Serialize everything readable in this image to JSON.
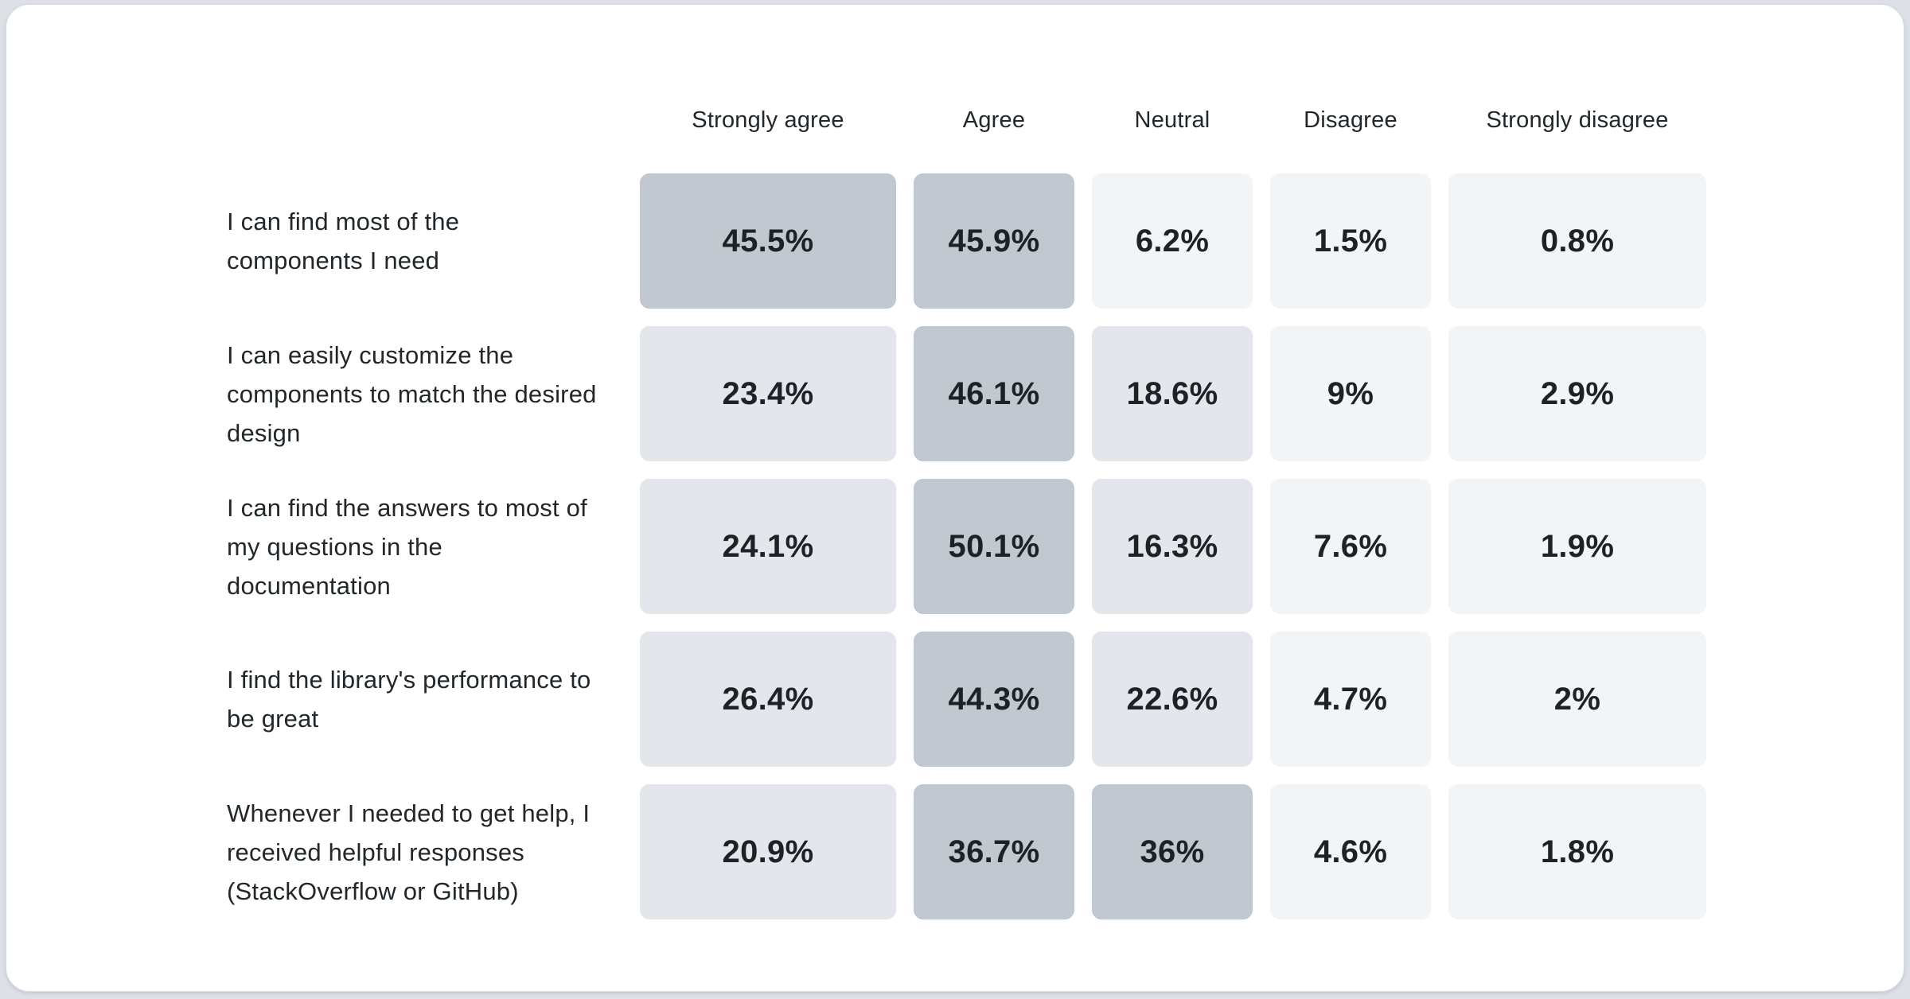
{
  "page": {
    "background_color": "#dde1e6",
    "card_background_color": "#ffffff",
    "text_color": "#21272a"
  },
  "chart_data": {
    "type": "heatmap",
    "title": "",
    "legend_position": "none",
    "grid": false,
    "columns": [
      "Strongly agree",
      "Agree",
      "Neutral",
      "Disagree",
      "Strongly disagree"
    ],
    "rows": [
      {
        "label": "I can find most of the components I need",
        "values": [
          45.5,
          45.9,
          6.2,
          1.5,
          0.8
        ],
        "display": [
          "45.5%",
          "45.9%",
          "6.2%",
          "1.5%",
          "0.8%"
        ]
      },
      {
        "label": "I can easily customize the components to match the desired design",
        "values": [
          23.4,
          46.1,
          18.6,
          9,
          2.9
        ],
        "display": [
          "23.4%",
          "46.1%",
          "18.6%",
          "9%",
          "2.9%"
        ]
      },
      {
        "label": "I can find the answers to most of my questions in the documentation",
        "values": [
          24.1,
          50.1,
          16.3,
          7.6,
          1.9
        ],
        "display": [
          "24.1%",
          "50.1%",
          "16.3%",
          "7.6%",
          "1.9%"
        ]
      },
      {
        "label": "I find the library's performance to be great",
        "values": [
          26.4,
          44.3,
          22.6,
          4.7,
          2
        ],
        "display": [
          "26.4%",
          "44.3%",
          "22.6%",
          "4.7%",
          "2%"
        ]
      },
      {
        "label": "Whenever I needed to get help, I received helpful responses (StackOverflow or GitHub)",
        "values": [
          20.9,
          36.7,
          36,
          4.6,
          1.8
        ],
        "display": [
          "20.9%",
          "36.7%",
          "36%",
          "4.6%",
          "1.8%"
        ]
      }
    ],
    "color_scale": {
      "steps": [
        {
          "min": 30,
          "color": "#c2c8cf"
        },
        {
          "min": 10,
          "color": "#e3e7eb"
        },
        {
          "min": 0,
          "color": "#f2f5f8"
        }
      ]
    }
  }
}
